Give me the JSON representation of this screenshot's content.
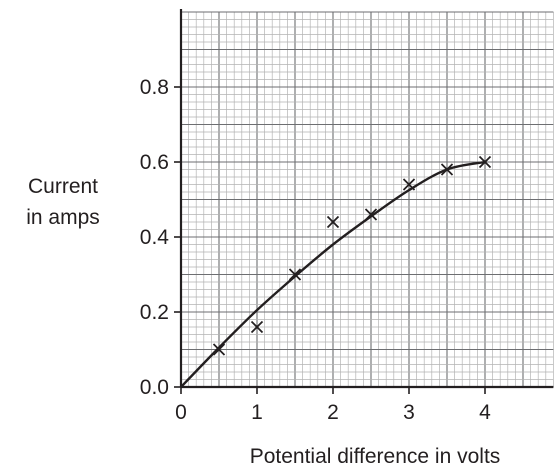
{
  "chart_data": {
    "type": "scatter",
    "title": "",
    "xlabel": "Potential difference in volts",
    "ylabel_lines": [
      "Current",
      "in amps"
    ],
    "xlim": [
      0,
      4.9
    ],
    "ylim": [
      0,
      1.0
    ],
    "x_ticks": [
      0,
      1,
      2,
      3,
      4
    ],
    "x_tick_labels": [
      "0",
      "1",
      "2",
      "3",
      "4"
    ],
    "y_ticks": [
      0,
      0.2,
      0.4,
      0.6,
      0.8
    ],
    "y_tick_labels": [
      "0.0",
      "0.2",
      "0.4",
      "0.6",
      "0.8"
    ],
    "grid": true,
    "minor_grid_step_x": 0.1,
    "minor_grid_step_y": 0.02,
    "major_grid_step_x": 0.5,
    "major_grid_step_y": 0.1,
    "marker": "x",
    "points": [
      {
        "x": 0.5,
        "y": 0.1
      },
      {
        "x": 1.0,
        "y": 0.16
      },
      {
        "x": 1.5,
        "y": 0.3
      },
      {
        "x": 2.0,
        "y": 0.44
      },
      {
        "x": 2.5,
        "y": 0.46
      },
      {
        "x": 3.0,
        "y": 0.54
      },
      {
        "x": 3.5,
        "y": 0.58
      },
      {
        "x": 4.0,
        "y": 0.6
      }
    ],
    "best_fit_curve": [
      {
        "x": 0.0,
        "y": 0.0
      },
      {
        "x": 0.5,
        "y": 0.105
      },
      {
        "x": 1.0,
        "y": 0.205
      },
      {
        "x": 1.5,
        "y": 0.295
      },
      {
        "x": 2.0,
        "y": 0.38
      },
      {
        "x": 2.5,
        "y": 0.455
      },
      {
        "x": 3.0,
        "y": 0.525
      },
      {
        "x": 3.5,
        "y": 0.58
      },
      {
        "x": 4.0,
        "y": 0.6
      }
    ],
    "colors": {
      "ink": "#231f20",
      "grid_minor": "#b3b3b3",
      "grid_major": "#6d6e71"
    }
  }
}
